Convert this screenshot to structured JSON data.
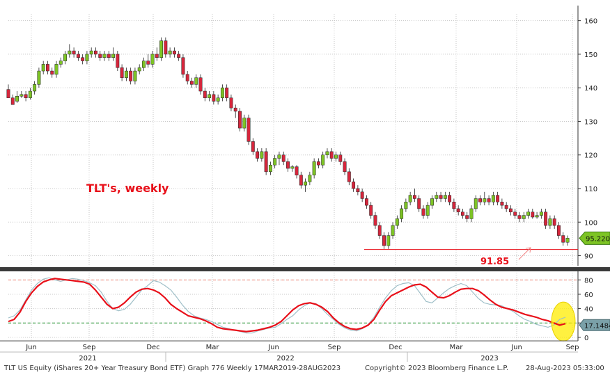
{
  "chart_data": [
    {
      "type": "candlestick",
      "title": "",
      "annotation_title": "TLT's, weekly",
      "ylim": [
        87,
        162
      ],
      "yticks": [
        90,
        100,
        110,
        120,
        130,
        140,
        150,
        160
      ],
      "last_price_label": "95.2200",
      "support_level": 91.85,
      "support_label": "91.85",
      "colors": {
        "up": "#7dc424",
        "down": "#d6263c",
        "annotation": "#e8101a",
        "support": "#e8101a"
      },
      "grid": true,
      "candles": [
        [
          139.5,
          137,
          141,
          138.5
        ],
        [
          137,
          135,
          138,
          136
        ],
        [
          136,
          137.5,
          139,
          135.5
        ],
        [
          137.5,
          138,
          139,
          137
        ],
        [
          138,
          137,
          139,
          136
        ],
        [
          137,
          139,
          140,
          136.5
        ],
        [
          139,
          141,
          142,
          138
        ],
        [
          141,
          145,
          146,
          140
        ],
        [
          145,
          147,
          148,
          144
        ],
        [
          147,
          145,
          148,
          144
        ],
        [
          145,
          144,
          146,
          143
        ],
        [
          144,
          147,
          148,
          143
        ],
        [
          147,
          148,
          149,
          146
        ],
        [
          148,
          150,
          151,
          147
        ],
        [
          150,
          151,
          153,
          149
        ],
        [
          151,
          150,
          152,
          149
        ],
        [
          150,
          149,
          151,
          148
        ],
        [
          149,
          148,
          150,
          147
        ],
        [
          148,
          150,
          151,
          147
        ],
        [
          150,
          151,
          152,
          149
        ],
        [
          151,
          150,
          152,
          149
        ],
        [
          150,
          149,
          151,
          148
        ],
        [
          149,
          150,
          151,
          148
        ],
        [
          150,
          149,
          151,
          148
        ],
        [
          149,
          150,
          152,
          148
        ],
        [
          150,
          146,
          151,
          145
        ],
        [
          146,
          143,
          147,
          142
        ],
        [
          143,
          145,
          146,
          142
        ],
        [
          145,
          142,
          146,
          141
        ],
        [
          142,
          145,
          146,
          141
        ],
        [
          145,
          146,
          147,
          144
        ],
        [
          146,
          148,
          149,
          145
        ],
        [
          148,
          147,
          150,
          146
        ],
        [
          147,
          150,
          151,
          146
        ],
        [
          150,
          149,
          152,
          148
        ],
        [
          149,
          154,
          155,
          148
        ],
        [
          154,
          150,
          155,
          149
        ],
        [
          150,
          151,
          152,
          149
        ],
        [
          151,
          150,
          152,
          149
        ],
        [
          150,
          149,
          151,
          148
        ],
        [
          149,
          144,
          150,
          143
        ],
        [
          144,
          142,
          145,
          141
        ],
        [
          142,
          141,
          143,
          140
        ],
        [
          141,
          143,
          144,
          140
        ],
        [
          143,
          139,
          144,
          138
        ],
        [
          139,
          137,
          140,
          136
        ],
        [
          137,
          138,
          139,
          136
        ],
        [
          138,
          136,
          139,
          135
        ],
        [
          136,
          137,
          138,
          135
        ],
        [
          137,
          140,
          141,
          136
        ],
        [
          140,
          137,
          141,
          136
        ],
        [
          137,
          134,
          138,
          133
        ],
        [
          134,
          133,
          135,
          131
        ],
        [
          133,
          128,
          134,
          127
        ],
        [
          128,
          131,
          132,
          127
        ],
        [
          131,
          124,
          132,
          123
        ],
        [
          124,
          121,
          125,
          120
        ],
        [
          121,
          119,
          122,
          118
        ],
        [
          119,
          121,
          122,
          118
        ],
        [
          121,
          115,
          122,
          114
        ],
        [
          115,
          117,
          118,
          114
        ],
        [
          117,
          119,
          120,
          116
        ],
        [
          119,
          120,
          121,
          117
        ],
        [
          120,
          118,
          121,
          117
        ],
        [
          118,
          116,
          119,
          115
        ],
        [
          116,
          116.5,
          117,
          115
        ],
        [
          116.5,
          114,
          117,
          113
        ],
        [
          114,
          111,
          115,
          110
        ],
        [
          111,
          112,
          113,
          109
        ],
        [
          112,
          114,
          115,
          111
        ],
        [
          114,
          118,
          119,
          113
        ],
        [
          118,
          117,
          119,
          116
        ],
        [
          117,
          120,
          121,
          116
        ],
        [
          120,
          121,
          122,
          119
        ],
        [
          121,
          119,
          122,
          118
        ],
        [
          119,
          120,
          121,
          118
        ],
        [
          120,
          118,
          121,
          117
        ],
        [
          118,
          115,
          119,
          114
        ],
        [
          115,
          112,
          116,
          111
        ],
        [
          112,
          110,
          113,
          109
        ],
        [
          110,
          109,
          111,
          108
        ],
        [
          109,
          107,
          110,
          106
        ],
        [
          107,
          105,
          108,
          104
        ],
        [
          105,
          102,
          106,
          101
        ],
        [
          102,
          99,
          103,
          98
        ],
        [
          99,
          96,
          100,
          95
        ],
        [
          96,
          93,
          97,
          92
        ],
        [
          93,
          96,
          97,
          92
        ],
        [
          96,
          99,
          100,
          95
        ],
        [
          99,
          101,
          102,
          98
        ],
        [
          101,
          104,
          105,
          100
        ],
        [
          104,
          106,
          107,
          103
        ],
        [
          106,
          108,
          109,
          105
        ],
        [
          108,
          107,
          110,
          106
        ],
        [
          107,
          104,
          108,
          103
        ],
        [
          104,
          102,
          105,
          101
        ],
        [
          102,
          105,
          106,
          101
        ],
        [
          105,
          107,
          108,
          104
        ],
        [
          107,
          108,
          109,
          106
        ],
        [
          108,
          107,
          109,
          106
        ],
        [
          107,
          108,
          109,
          106
        ],
        [
          108,
          106,
          109,
          105
        ],
        [
          106,
          104,
          107,
          103
        ],
        [
          104,
          103,
          105,
          102
        ],
        [
          103,
          102,
          104,
          101
        ],
        [
          102,
          101,
          103,
          100
        ],
        [
          101,
          104,
          105,
          100
        ],
        [
          104,
          107,
          108,
          103
        ],
        [
          107,
          106,
          108,
          105
        ],
        [
          106,
          107,
          109,
          105
        ],
        [
          107,
          106,
          108,
          105
        ],
        [
          106,
          108,
          109,
          105
        ],
        [
          108,
          106,
          109,
          105
        ],
        [
          106,
          105,
          107,
          104
        ],
        [
          105,
          104,
          106,
          103
        ],
        [
          104,
          103,
          105,
          102
        ],
        [
          103,
          102,
          104,
          101
        ],
        [
          102,
          101,
          103,
          100
        ],
        [
          101,
          102,
          103,
          100
        ],
        [
          102,
          103,
          104,
          101
        ],
        [
          103,
          101.5,
          104,
          101
        ],
        [
          101.5,
          102,
          103,
          101
        ],
        [
          102,
          103,
          104,
          101
        ],
        [
          103,
          99,
          104,
          98
        ],
        [
          99,
          101,
          102,
          98
        ],
        [
          101,
          99,
          102,
          98
        ],
        [
          99,
          96,
          100,
          95
        ],
        [
          96,
          94,
          97,
          93
        ],
        [
          94,
          95.22,
          96,
          93
        ]
      ],
      "tick_labels": [
        "Jun",
        "Sep",
        "Dec",
        "Mar",
        "Jun",
        "Sep",
        "Dec",
        "Mar",
        "Jun",
        "Sep"
      ],
      "year_labels": [
        "2021",
        "2022",
        "2023"
      ]
    },
    {
      "type": "line",
      "title": "",
      "ylim": [
        -5,
        90
      ],
      "yticks": [
        0,
        20,
        40,
        60,
        80
      ],
      "reference_lines": [
        80,
        20
      ],
      "last_value_label": "17.1484",
      "highlight": "yellow-circle",
      "series": [
        {
          "values": [
            27,
            30,
            38,
            52,
            66,
            75,
            81,
            83,
            80,
            78,
            80,
            82,
            81,
            79,
            76,
            72,
            63,
            50,
            40,
            37,
            39,
            46,
            56,
            66,
            72,
            79,
            77,
            72,
            66,
            56,
            45,
            36,
            30,
            27,
            25,
            22,
            18,
            14,
            12,
            10,
            8,
            6,
            6,
            9,
            11,
            13,
            14,
            19,
            25,
            30,
            38,
            44,
            48,
            47,
            40,
            32,
            25,
            18,
            13,
            10,
            9,
            12,
            18,
            28,
            42,
            55,
            65,
            72,
            75,
            76,
            72,
            61,
            50,
            48,
            55,
            62,
            68,
            72,
            75,
            72,
            63,
            54,
            48,
            46,
            45,
            44,
            40,
            36,
            30,
            25,
            22,
            18,
            16,
            14,
            17,
            25,
            28
          ]
        },
        {
          "values": [
            22,
            25,
            35,
            50,
            62,
            71,
            77,
            80,
            82,
            81,
            80,
            79,
            78,
            77,
            74,
            66,
            56,
            46,
            40,
            42,
            48,
            56,
            63,
            67,
            68,
            66,
            62,
            55,
            46,
            40,
            35,
            30,
            28,
            26,
            23,
            19,
            14,
            12,
            11,
            10,
            9,
            8,
            9,
            10,
            12,
            14,
            17,
            22,
            30,
            38,
            44,
            47,
            48,
            46,
            42,
            36,
            27,
            20,
            15,
            12,
            11,
            13,
            17,
            25,
            38,
            50,
            58,
            62,
            66,
            70,
            73,
            74,
            70,
            63,
            56,
            55,
            58,
            63,
            67,
            68,
            68,
            65,
            59,
            52,
            46,
            42,
            40,
            38,
            35,
            32,
            30,
            28,
            25,
            23,
            20,
            17,
            19
          ]
        }
      ]
    }
  ],
  "footer": {
    "left": "TLT US Equity (iShares 20+ Year Treasury Bond ETF) Graph 776  Weekly 17MAR2019-28AUG2023",
    "center": "Copyright© 2023 Bloomberg Finance L.P.",
    "right": "28-Aug-2023 05:33:00"
  }
}
